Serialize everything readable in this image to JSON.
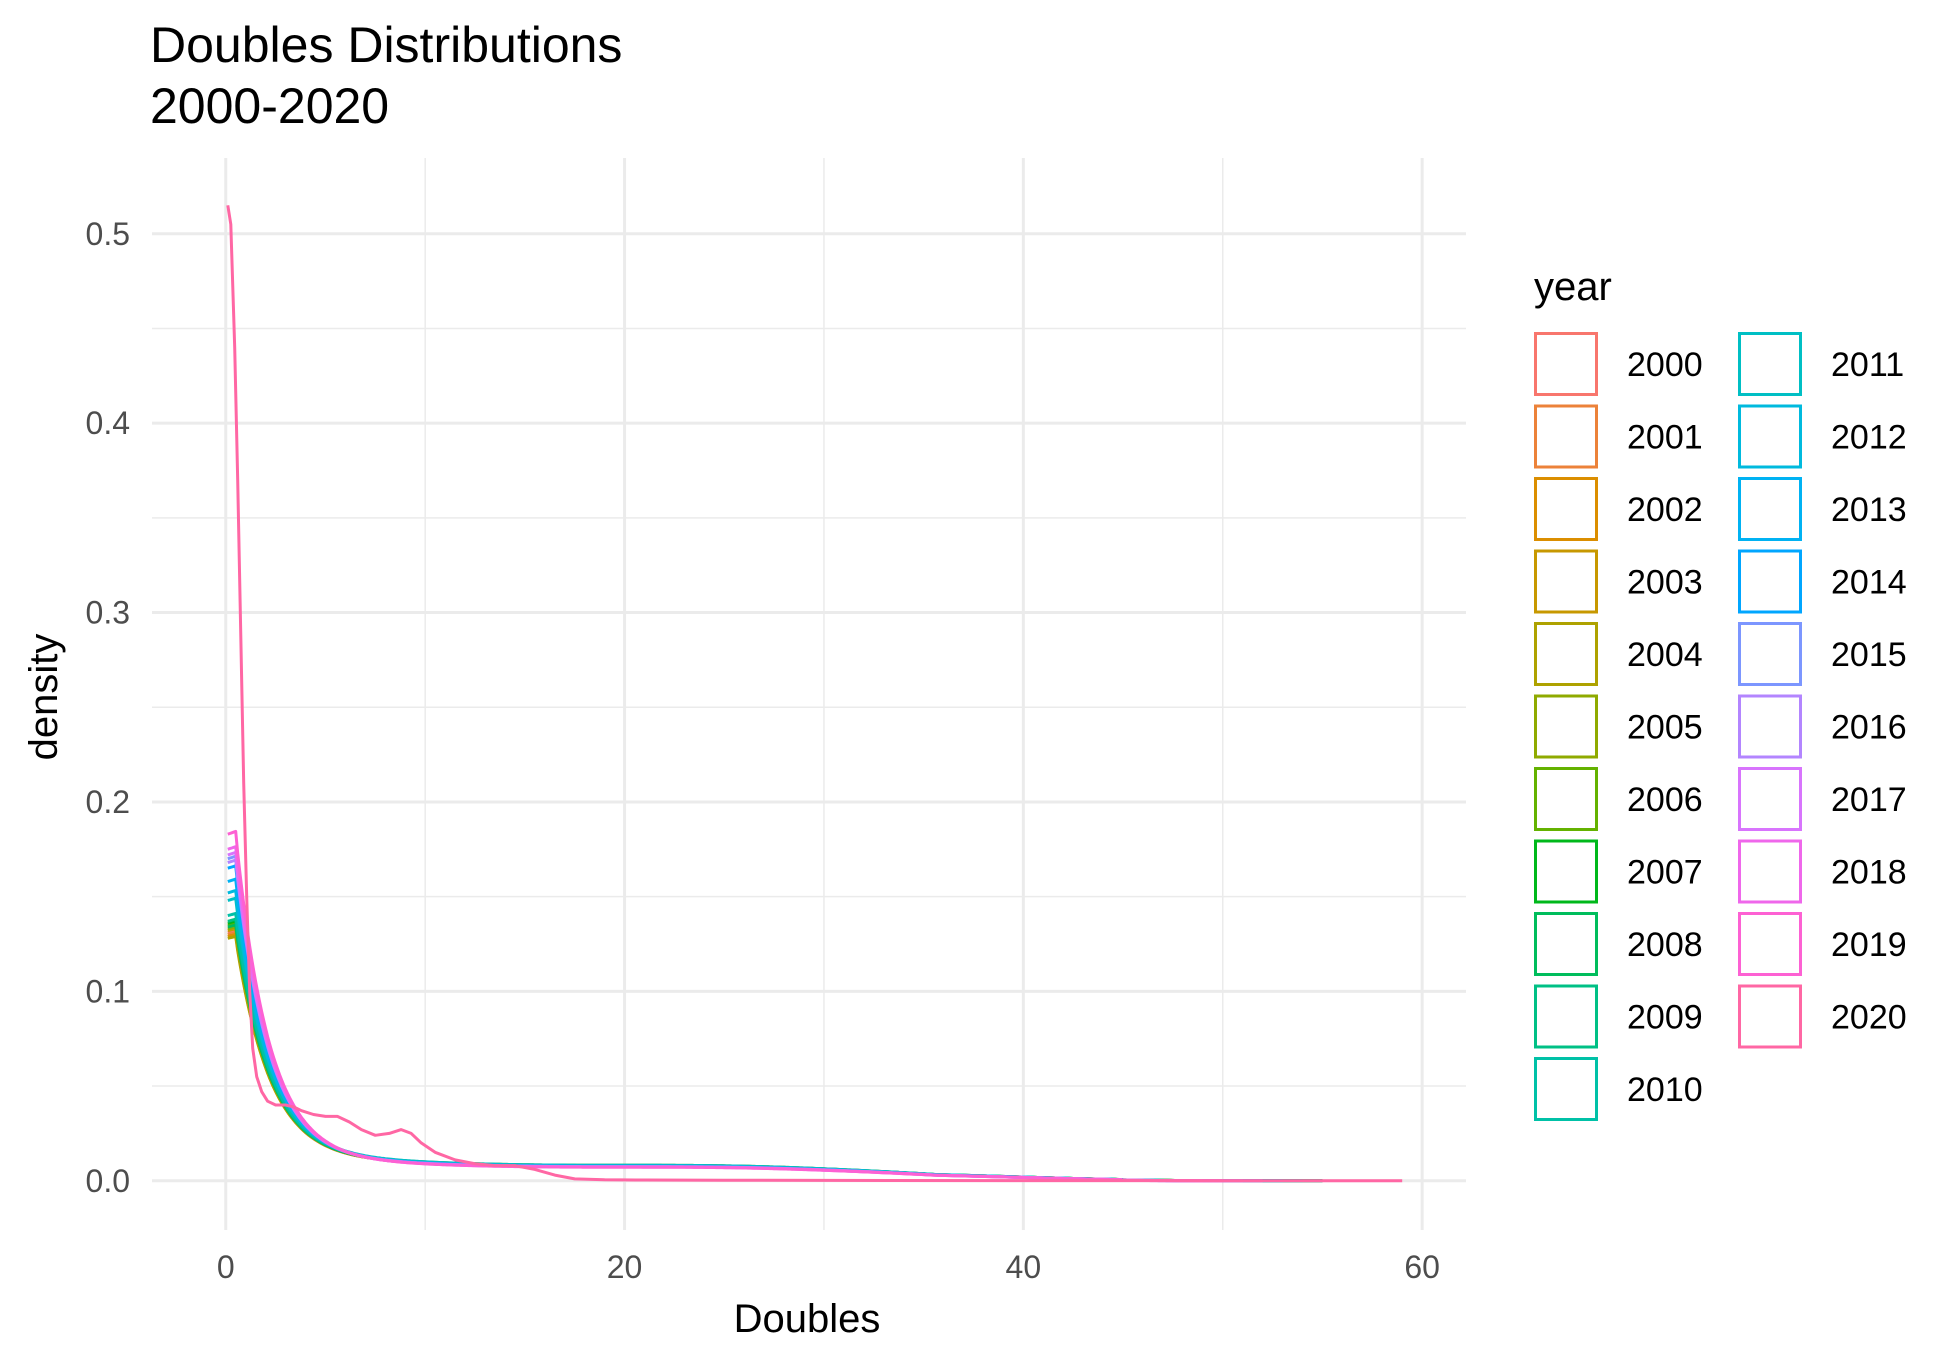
{
  "chart_data": {
    "type": "line",
    "title": "Doubles Distributions",
    "subtitle": "2000-2020",
    "xlabel": "Doubles",
    "ylabel": "density",
    "xlim": [
      -3.7,
      62.2
    ],
    "ylim": [
      -0.026,
      0.54
    ],
    "x_ticks": [
      0,
      20,
      40,
      60
    ],
    "y_ticks": [
      0.0,
      0.1,
      0.2,
      0.3,
      0.4,
      0.5
    ],
    "x_tick_labels": [
      "0",
      "20",
      "40",
      "60"
    ],
    "y_tick_labels": [
      "0.0",
      "0.1",
      "0.2",
      "0.3",
      "0.4",
      "0.5"
    ],
    "grid": true,
    "legend": {
      "title": "year",
      "position": "right",
      "columns": 2
    },
    "series": [
      {
        "name": "2000",
        "color": "#F8766D",
        "peak": 0.131,
        "x_end": 55,
        "tail": 1.0
      },
      {
        "name": "2001",
        "color": "#EC8239",
        "peak": 0.13,
        "x_end": 54,
        "tail": 1.0
      },
      {
        "name": "2002",
        "color": "#DB8E00",
        "peak": 0.129,
        "x_end": 55,
        "tail": 1.02
      },
      {
        "name": "2003",
        "color": "#C79800",
        "peak": 0.132,
        "x_end": 54,
        "tail": 1.0
      },
      {
        "name": "2004",
        "color": "#AEA200",
        "peak": 0.128,
        "x_end": 55,
        "tail": 1.05
      },
      {
        "name": "2005",
        "color": "#8FAA00",
        "peak": 0.133,
        "x_end": 52,
        "tail": 1.03
      },
      {
        "name": "2006",
        "color": "#64B200",
        "peak": 0.135,
        "x_end": 54,
        "tail": 1.04
      },
      {
        "name": "2007",
        "color": "#00B81B",
        "peak": 0.136,
        "x_end": 53,
        "tail": 1.02
      },
      {
        "name": "2008",
        "color": "#00BD5C",
        "peak": 0.134,
        "x_end": 55,
        "tail": 1.01
      },
      {
        "name": "2009",
        "color": "#00C085",
        "peak": 0.137,
        "x_end": 52,
        "tail": 1.03
      },
      {
        "name": "2010",
        "color": "#00C1A7",
        "peak": 0.14,
        "x_end": 54,
        "tail": 1.04
      },
      {
        "name": "2011",
        "color": "#00BFC4",
        "peak": 0.148,
        "x_end": 55,
        "tail": 1.05
      },
      {
        "name": "2012",
        "color": "#00BADE",
        "peak": 0.152,
        "x_end": 53,
        "tail": 1.0
      },
      {
        "name": "2013",
        "color": "#00B2F3",
        "peak": 0.158,
        "x_end": 51,
        "tail": 0.98
      },
      {
        "name": "2014",
        "color": "#00A6FF",
        "peak": 0.165,
        "x_end": 52,
        "tail": 0.97
      },
      {
        "name": "2015",
        "color": "#7C96FF",
        "peak": 0.17,
        "x_end": 50,
        "tail": 0.96
      },
      {
        "name": "2016",
        "color": "#B385FF",
        "peak": 0.168,
        "x_end": 51,
        "tail": 0.95
      },
      {
        "name": "2017",
        "color": "#D874FD",
        "peak": 0.172,
        "x_end": 49,
        "tail": 0.94
      },
      {
        "name": "2018",
        "color": "#EF67EB",
        "peak": 0.175,
        "x_end": 50,
        "tail": 0.93
      },
      {
        "name": "2019",
        "color": "#FD61D3",
        "peak": 0.183,
        "x_end": 52,
        "tail": 0.92
      },
      {
        "name": "2020",
        "color": "#FF67A4",
        "peak": 0.515,
        "x_end": 59,
        "tail": 0.0,
        "points": [
          [
            0.1,
            0.515
          ],
          [
            0.25,
            0.505
          ],
          [
            0.45,
            0.44
          ],
          [
            0.6,
            0.37
          ],
          [
            0.75,
            0.29
          ],
          [
            0.9,
            0.21
          ],
          [
            1.05,
            0.15
          ],
          [
            1.2,
            0.1
          ],
          [
            1.35,
            0.07
          ],
          [
            1.55,
            0.055
          ],
          [
            1.8,
            0.047
          ],
          [
            2.1,
            0.042
          ],
          [
            2.5,
            0.04
          ],
          [
            3.0,
            0.04
          ],
          [
            3.4,
            0.039
          ],
          [
            3.8,
            0.037
          ],
          [
            4.4,
            0.035
          ],
          [
            5.0,
            0.034
          ],
          [
            5.6,
            0.034
          ],
          [
            6.2,
            0.031
          ],
          [
            6.8,
            0.027
          ],
          [
            7.5,
            0.024
          ],
          [
            8.2,
            0.025
          ],
          [
            8.8,
            0.027
          ],
          [
            9.3,
            0.025
          ],
          [
            9.8,
            0.02
          ],
          [
            10.5,
            0.015
          ],
          [
            11.5,
            0.011
          ],
          [
            12.5,
            0.009
          ],
          [
            13.5,
            0.008
          ],
          [
            14.5,
            0.008
          ],
          [
            15.5,
            0.006
          ],
          [
            16.5,
            0.003
          ],
          [
            17.5,
            0.001
          ],
          [
            19,
            0.0005
          ],
          [
            21,
            0.0004
          ],
          [
            25,
            0.0003
          ],
          [
            30,
            0.0002
          ],
          [
            40,
            0.0001
          ],
          [
            50,
            5e-05
          ],
          [
            59,
            0.0
          ]
        ]
      }
    ]
  }
}
